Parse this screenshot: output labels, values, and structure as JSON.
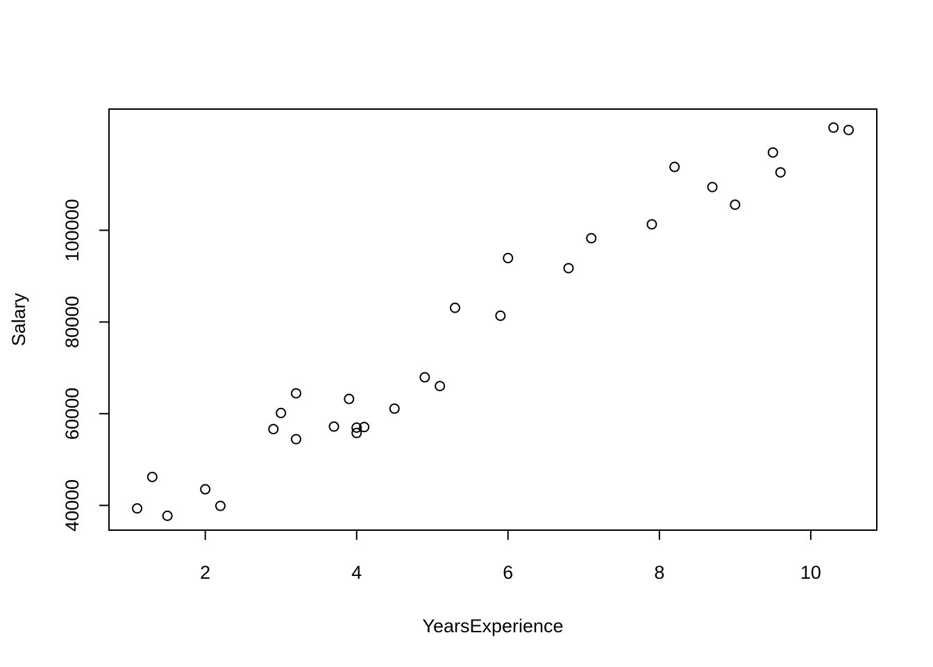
{
  "chart_data": {
    "type": "scatter",
    "title": "",
    "xlabel": "YearsExperience",
    "ylabel": "Salary",
    "xlim": [
      0.728,
      10.872
    ],
    "ylim": [
      34606,
      126434
    ],
    "xticks": [
      2,
      4,
      6,
      8,
      10
    ],
    "xtick_labels": [
      "2",
      "4",
      "6",
      "8",
      "10"
    ],
    "yticks": [
      40000,
      60000,
      80000,
      100000
    ],
    "ytick_labels": [
      "40000",
      "60000",
      "80000",
      "100000"
    ],
    "grid": false,
    "legend": "none",
    "marker": "open-circle",
    "series": [
      {
        "points": [
          {
            "x": 1.1,
            "y": 39343
          },
          {
            "x": 1.3,
            "y": 46205
          },
          {
            "x": 1.5,
            "y": 37731
          },
          {
            "x": 2.0,
            "y": 43525
          },
          {
            "x": 2.2,
            "y": 39891
          },
          {
            "x": 2.9,
            "y": 56642
          },
          {
            "x": 3.0,
            "y": 60150
          },
          {
            "x": 3.2,
            "y": 54445
          },
          {
            "x": 3.2,
            "y": 64445
          },
          {
            "x": 3.7,
            "y": 57189
          },
          {
            "x": 3.9,
            "y": 63218
          },
          {
            "x": 4.0,
            "y": 55794
          },
          {
            "x": 4.0,
            "y": 56957
          },
          {
            "x": 4.1,
            "y": 57081
          },
          {
            "x": 4.5,
            "y": 61111
          },
          {
            "x": 4.9,
            "y": 67938
          },
          {
            "x": 5.1,
            "y": 66029
          },
          {
            "x": 5.3,
            "y": 83088
          },
          {
            "x": 5.9,
            "y": 81363
          },
          {
            "x": 6.0,
            "y": 93940
          },
          {
            "x": 6.8,
            "y": 91738
          },
          {
            "x": 7.1,
            "y": 98273
          },
          {
            "x": 7.9,
            "y": 101302
          },
          {
            "x": 8.2,
            "y": 113812
          },
          {
            "x": 8.7,
            "y": 109431
          },
          {
            "x": 9.0,
            "y": 105582
          },
          {
            "x": 9.5,
            "y": 116969
          },
          {
            "x": 9.6,
            "y": 112635
          },
          {
            "x": 10.3,
            "y": 122391
          },
          {
            "x": 10.5,
            "y": 121872
          }
        ]
      }
    ]
  }
}
